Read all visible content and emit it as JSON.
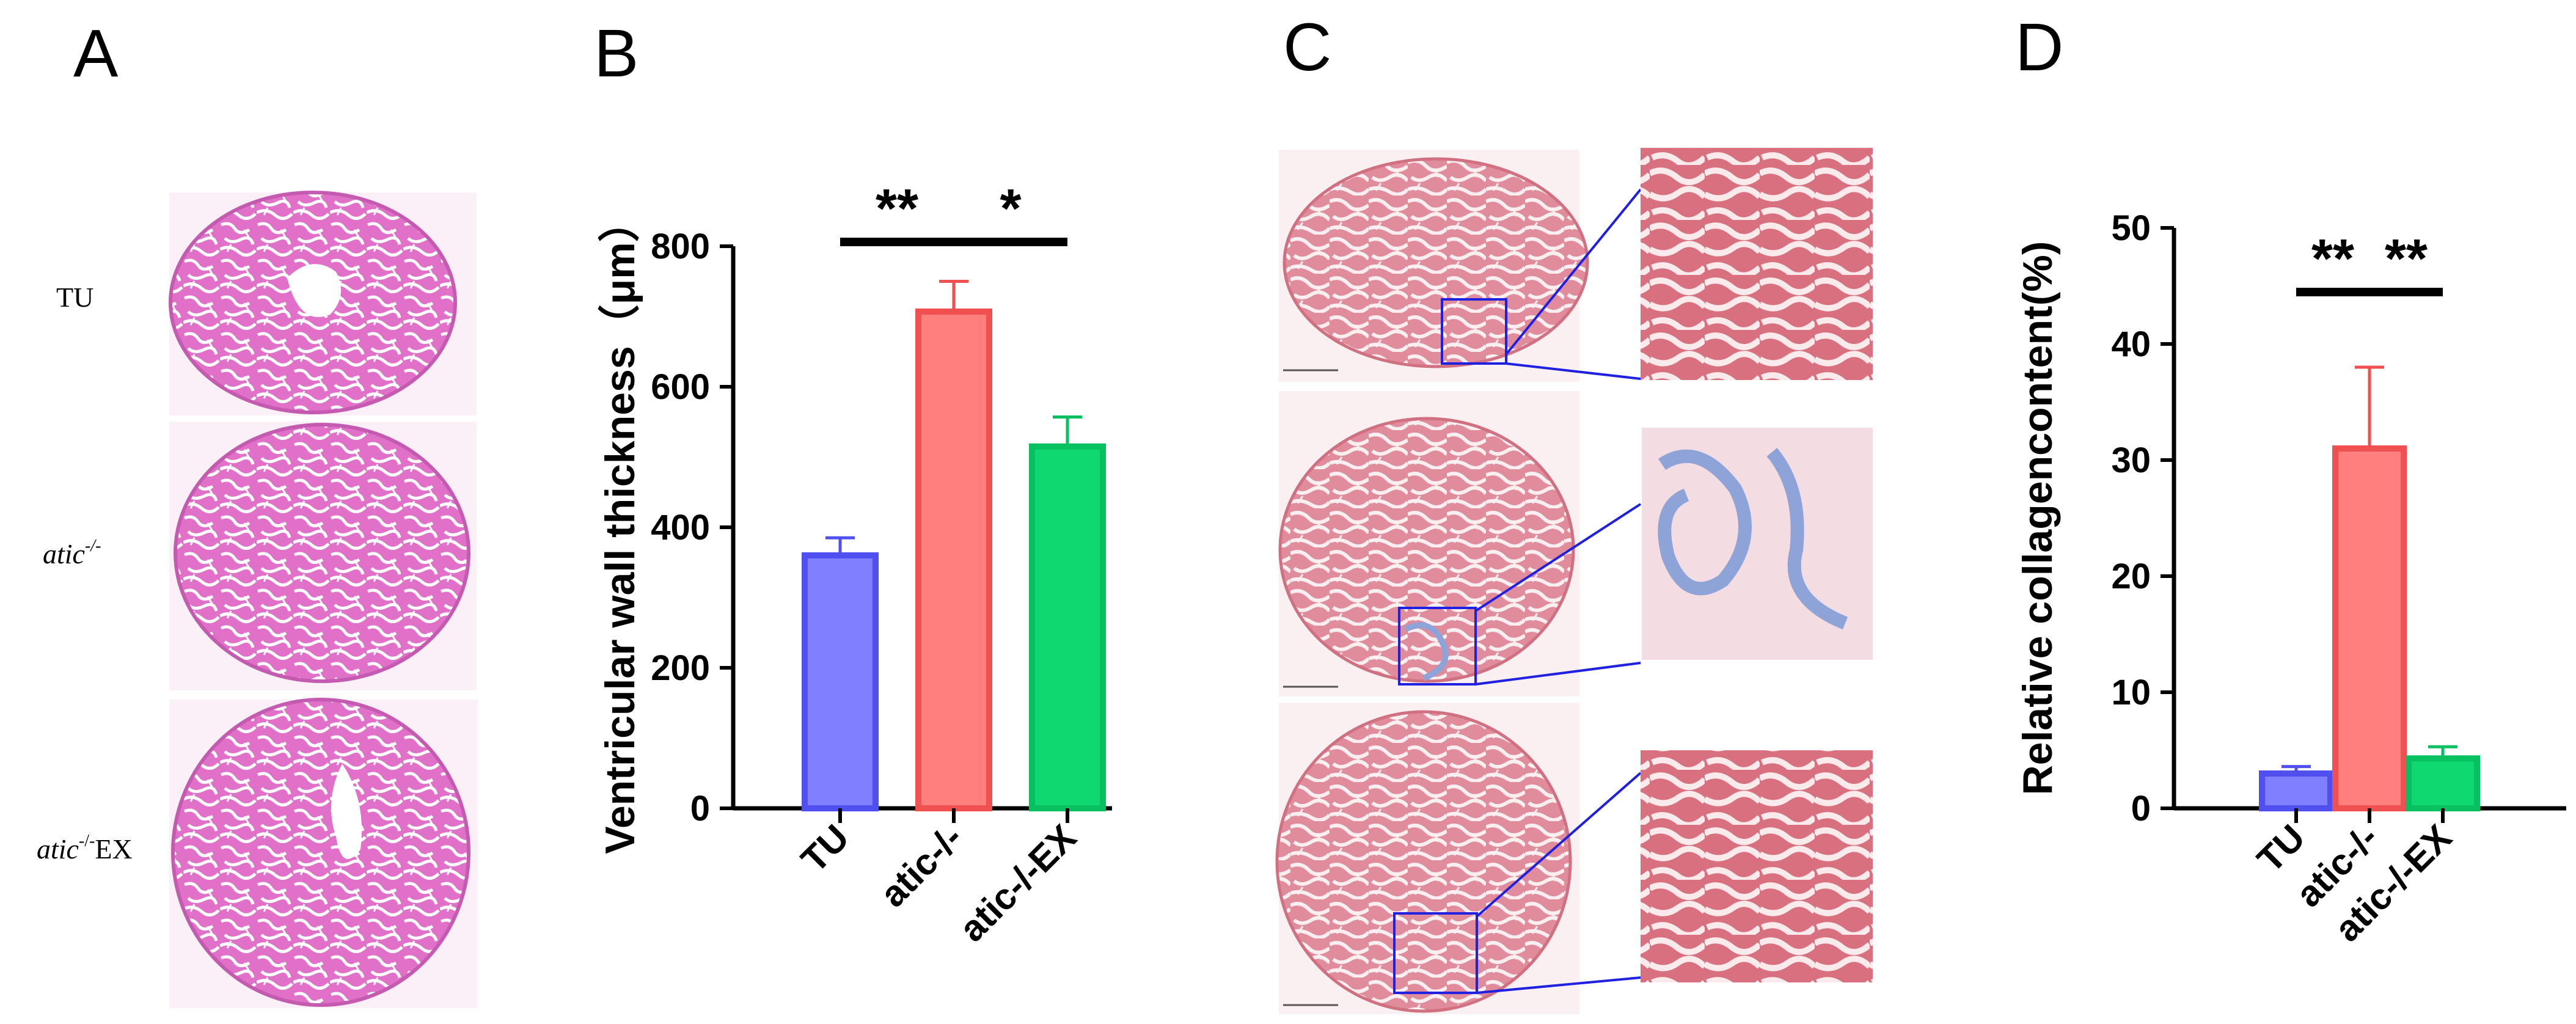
{
  "panels": {
    "a": {
      "letter": "A",
      "rows": [
        {
          "label": "TU",
          "sup": "",
          "suffix": ""
        },
        {
          "label": "atic",
          "sup": "-/-",
          "suffix": ""
        },
        {
          "label": "atic",
          "sup": "-/-",
          "suffix": "EX"
        }
      ]
    },
    "b": {
      "letter": "B"
    },
    "c": {
      "letter": "C"
    },
    "d": {
      "letter": "D"
    }
  },
  "colors": {
    "tu": "#7f7fff",
    "tu_edge": "#5050f0",
    "ko": "#ff7f7f",
    "ko_edge": "#f05050",
    "ex": "#10d870",
    "ex_edge": "#08c060",
    "he_stain": "#e070c8",
    "masson_stain": "#e59aaa",
    "collagen": "#8ea4d8",
    "zoom_box": "#2020e0"
  },
  "chart_data": [
    {
      "type": "bar",
      "categories": [
        "TU",
        "atic-/-",
        "atic-/-EX"
      ],
      "values": [
        360,
        707,
        515
      ],
      "errors": [
        25,
        43,
        42
      ],
      "title": "",
      "xlabel": "",
      "ylabel": "Ventricular wall thickness（μm）",
      "ylim": [
        0,
        800
      ],
      "yticks": [
        0,
        200,
        400,
        600,
        800
      ],
      "grid": false,
      "legend": "none",
      "significance": [
        {
          "between": [
            "TU",
            "atic-/-"
          ],
          "label": "**"
        },
        {
          "between": [
            "atic-/-",
            "atic-/-EX"
          ],
          "label": "*"
        }
      ]
    },
    {
      "type": "bar",
      "categories": [
        "TU",
        "atic-/-",
        "atic-/-EX"
      ],
      "values": [
        3.0,
        31.0,
        4.3
      ],
      "errors": [
        0.6,
        7.0,
        1.0
      ],
      "title": "",
      "xlabel": "",
      "ylabel": "Relative collagencontent(%)",
      "ylim": [
        0,
        50
      ],
      "yticks": [
        0,
        10,
        20,
        30,
        40,
        50
      ],
      "grid": false,
      "legend": "none",
      "significance": [
        {
          "between": [
            "TU",
            "atic-/-"
          ],
          "label": "**"
        },
        {
          "between": [
            "atic-/-",
            "atic-/-EX"
          ],
          "label": "**"
        }
      ]
    }
  ]
}
